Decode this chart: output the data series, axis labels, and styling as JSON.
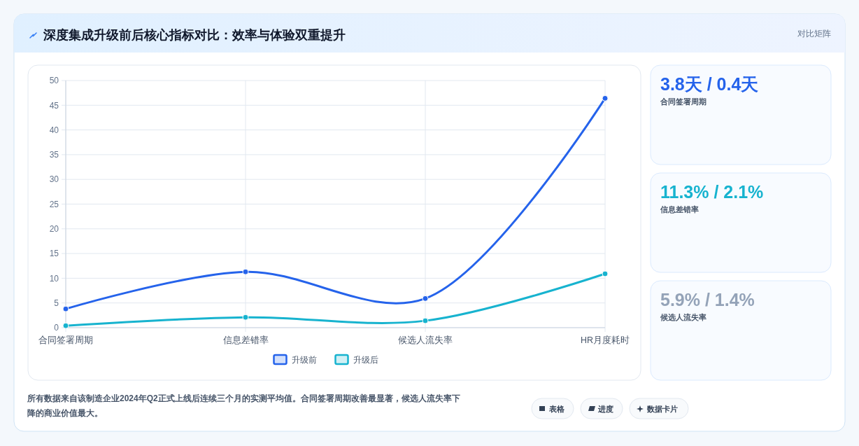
{
  "chart_data": [
    {
      "type": "line",
      "title": "深度集成升级前后核心指标对比：效率与体验双重提升",
      "categories": [
        "合同签署周期",
        "信息差错率",
        "候选人流失率",
        "HR月度耗时"
      ],
      "series": [
        {
          "name": "升级前",
          "color": "#2563eb",
          "values": [
            3.8,
            11.3,
            5.9,
            46.4
          ]
        },
        {
          "name": "升级后",
          "color": "#17b3cf",
          "values": [
            0.4,
            2.1,
            1.4,
            10.9
          ]
        }
      ],
      "ylim": [
        0,
        50
      ],
      "yticks": [
        0,
        5,
        10,
        15,
        20,
        25,
        30,
        35,
        40,
        45,
        50
      ],
      "grid": true,
      "legend": "bottom",
      "marker": "circle",
      "line_style": "solid",
      "annotations": [
        "对比矩阵",
        "所有数据来自该制造企业2024年Q2正式上线后连续三个月的实测平均值。合同签署周期改善最显著，候选人流失率下降的商业价值最大。",
        "表格",
        "进度",
        "数据卡片"
      ]
    },
    {
      "type": "other",
      "annotations": [
        "3.8天 / 0.4天",
        "合同签署周期",
        "11.3% / 2.1%",
        "信息差错率",
        "5.9% / 1.4%",
        "候选人流失率"
      ],
      "colors": [
        "#2563eb",
        "#17b3cf",
        "#94a3b8"
      ]
    }
  ]
}
